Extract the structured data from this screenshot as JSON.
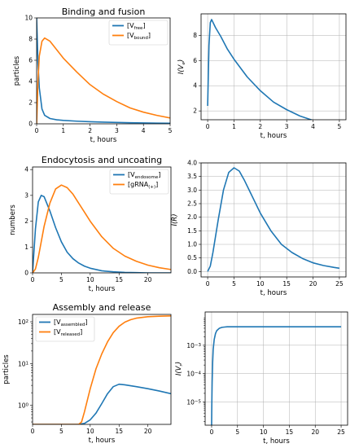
{
  "chart_data": [
    {
      "id": "binding",
      "type": "line",
      "title": "Binding and fusion",
      "xlabel": "t, hours",
      "ylabel": "particles",
      "xlim": [
        0,
        5
      ],
      "ylim": [
        0,
        10
      ],
      "xticks": [
        0,
        1,
        2,
        3,
        4,
        5
      ],
      "yticks": [
        0,
        2,
        4,
        6,
        8,
        10
      ],
      "grid": false,
      "legend": "top-right",
      "series": [
        {
          "base": "[V",
          "sub": "free",
          "close": "]",
          "color": "#1f77b4",
          "x": [
            0,
            0.05,
            0.1,
            0.2,
            0.3,
            0.5,
            0.75,
            1,
            1.5,
            2,
            2.5,
            3,
            3.5,
            4,
            4.5,
            5
          ],
          "y": [
            10,
            5.8,
            3.4,
            1.4,
            0.8,
            0.5,
            0.38,
            0.32,
            0.25,
            0.2,
            0.16,
            0.13,
            0.1,
            0.08,
            0.06,
            0.05
          ]
        },
        {
          "base": "[V",
          "sub": "bound",
          "close": "]",
          "color": "#ff7f0e",
          "x": [
            0,
            0.05,
            0.1,
            0.2,
            0.3,
            0.5,
            0.75,
            1,
            1.5,
            2,
            2.5,
            3,
            3.5,
            4,
            4.5,
            5
          ],
          "y": [
            0,
            4.0,
            6.4,
            7.8,
            8.1,
            7.8,
            7.0,
            6.2,
            4.9,
            3.7,
            2.8,
            2.1,
            1.5,
            1.1,
            0.8,
            0.55
          ]
        }
      ]
    },
    {
      "id": "ive",
      "type": "line",
      "title": "",
      "xlabel": "t, hours",
      "ylabel": "I(V",
      "ylabel_sub": "e",
      "ylabel_close": ")",
      "xlim": [
        -0.25,
        5.25
      ],
      "ylim": [
        1.3,
        9.7
      ],
      "xticks": [
        0,
        1,
        2,
        3,
        4,
        5
      ],
      "yticks": [
        2,
        4,
        6,
        8
      ],
      "grid": true,
      "series": [
        {
          "color": "#1f77b4",
          "x": [
            0,
            0.05,
            0.1,
            0.15,
            0.3,
            0.5,
            0.75,
            1,
            1.5,
            2,
            2.5,
            3,
            3.5,
            4,
            4.5,
            5
          ],
          "y": [
            2.4,
            7.2,
            9.0,
            9.25,
            8.6,
            7.9,
            6.9,
            6.1,
            4.7,
            3.6,
            2.7,
            2.1,
            1.6,
            1.25,
            0.95,
            0.7
          ]
        }
      ]
    },
    {
      "id": "endocytosis",
      "type": "line",
      "title": "Endocytosis and uncoating",
      "xlabel": "t, hours",
      "ylabel": "numbers",
      "xlim": [
        0,
        24
      ],
      "ylim": [
        0,
        4.1
      ],
      "xticks": [
        0,
        5,
        10,
        15,
        20
      ],
      "yticks": [
        0,
        1,
        2,
        3,
        4
      ],
      "grid": false,
      "legend": "top-right",
      "series": [
        {
          "base": "[V",
          "sub": "endosome",
          "close": "]",
          "color": "#1f77b4",
          "x": [
            0,
            0.5,
            1,
            1.5,
            2,
            3,
            4,
            5,
            6,
            7,
            8,
            9,
            10,
            12,
            14,
            16,
            18,
            20,
            24
          ],
          "y": [
            0,
            1.7,
            2.75,
            3.0,
            2.95,
            2.4,
            1.75,
            1.2,
            0.8,
            0.55,
            0.38,
            0.26,
            0.18,
            0.08,
            0.04,
            0.02,
            0.01,
            0.0,
            0.0
          ]
        },
        {
          "base": "[gRNA",
          "sub": "(+)",
          "close": "]",
          "color": "#ff7f0e",
          "x": [
            0,
            0.5,
            1,
            2,
            3,
            4,
            5,
            6,
            7,
            8,
            9,
            10,
            12,
            14,
            16,
            18,
            20,
            22,
            24
          ],
          "y": [
            0,
            0.15,
            0.6,
            1.8,
            2.7,
            3.25,
            3.4,
            3.3,
            3.05,
            2.7,
            2.35,
            2.0,
            1.4,
            0.95,
            0.65,
            0.45,
            0.3,
            0.2,
            0.13
          ]
        }
      ]
    },
    {
      "id": "ir",
      "type": "line",
      "title": "",
      "xlabel": "t, hours",
      "ylabel": "I(R)",
      "xlim": [
        -1.25,
        26.25
      ],
      "ylim": [
        -0.2,
        4.0
      ],
      "xticks": [
        0,
        5,
        10,
        15,
        20,
        25
      ],
      "yticks": [
        0.0,
        0.5,
        1.0,
        1.5,
        2.0,
        2.5,
        3.0,
        3.5,
        4.0
      ],
      "ytick_decimals": 1,
      "grid": true,
      "series": [
        {
          "color": "#1f77b4",
          "x": [
            0,
            0.5,
            1,
            2,
            3,
            4,
            5,
            6,
            7,
            8,
            9,
            10,
            12,
            14,
            16,
            18,
            20,
            22,
            24,
            25
          ],
          "y": [
            0,
            0.2,
            0.7,
            1.9,
            3.0,
            3.65,
            3.82,
            3.7,
            3.35,
            2.95,
            2.55,
            2.15,
            1.5,
            1.0,
            0.7,
            0.48,
            0.32,
            0.22,
            0.15,
            0.12
          ]
        }
      ]
    },
    {
      "id": "assembly",
      "type": "line",
      "title": "Assembly and release",
      "xlabel": "t, hours",
      "ylabel": "particles",
      "yscale": "log",
      "xlim": [
        0,
        24
      ],
      "ylim": [
        0.35,
        150
      ],
      "xticks": [
        0,
        5,
        10,
        15,
        20
      ],
      "yticks": [
        {
          "value": 1,
          "base": "10",
          "exp": "0"
        },
        {
          "value": 10,
          "base": "10",
          "exp": "1"
        },
        {
          "value": 100,
          "base": "10",
          "exp": "2"
        }
      ],
      "grid": false,
      "legend": "top-left",
      "series": [
        {
          "base": "[V",
          "sub": "assembled",
          "close": "]",
          "color": "#1f77b4",
          "x": [
            0,
            8,
            9,
            10,
            11,
            12,
            13,
            14,
            15,
            16,
            18,
            20,
            22,
            24
          ],
          "y": [
            0.35,
            0.35,
            0.37,
            0.45,
            0.65,
            1.1,
            1.9,
            2.8,
            3.2,
            3.1,
            2.8,
            2.5,
            2.2,
            1.9
          ]
        },
        {
          "base": "[V",
          "sub": "released",
          "close": "]",
          "color": "#ff7f0e",
          "x": [
            0,
            8,
            8.5,
            9,
            10,
            11,
            12,
            13,
            14,
            15,
            16,
            17,
            18,
            20,
            22,
            24
          ],
          "y": [
            0.35,
            0.35,
            0.4,
            0.7,
            2.5,
            7.5,
            17,
            33,
            55,
            78,
            98,
            112,
            122,
            132,
            136,
            138
          ]
        }
      ]
    },
    {
      "id": "ivr",
      "type": "line",
      "title": "",
      "xlabel": "t, hours",
      "ylabel": "I(V",
      "ylabel_sub": "r",
      "ylabel_close": ")",
      "yscale": "log",
      "xlim": [
        -1.25,
        26.25
      ],
      "ylim": [
        1.5e-06,
        0.015
      ],
      "xticks": [
        0,
        5,
        10,
        15,
        20,
        25
      ],
      "yticks": [
        {
          "value": 1e-05,
          "base": "10",
          "exp": "−5"
        },
        {
          "value": 0.0001,
          "base": "10",
          "exp": "−4"
        },
        {
          "value": 0.001,
          "base": "10",
          "exp": "−3"
        }
      ],
      "grid": true,
      "series": [
        {
          "color": "#1f77b4",
          "x": [
            0,
            0.02,
            0.05,
            0.1,
            0.2,
            0.3,
            0.5,
            0.75,
            1,
            1.5,
            2,
            2.5,
            3,
            4,
            5,
            10,
            15,
            20,
            25
          ],
          "y": [
            1.5e-06,
            4e-06,
            1.2e-05,
            5e-05,
            0.00025,
            0.0007,
            0.0016,
            0.0026,
            0.0033,
            0.004,
            0.0043,
            0.0044,
            0.0045,
            0.0045,
            0.0045,
            0.0045,
            0.0045,
            0.0045,
            0.0045
          ]
        }
      ]
    }
  ]
}
